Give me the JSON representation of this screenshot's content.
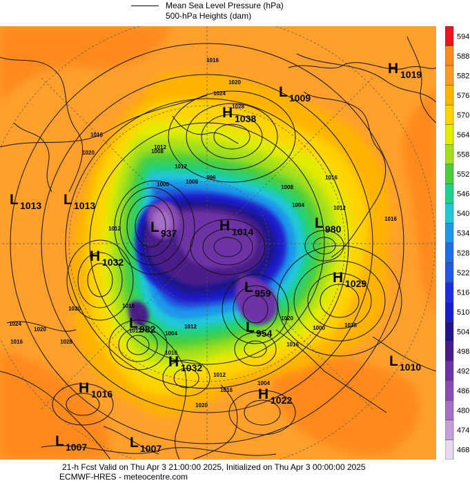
{
  "legend": {
    "mslp_label": "Mean Sea Level Pressure (hPa)",
    "heights_label": "500-hPa Heights (dam)"
  },
  "colorbar": {
    "ticks": [
      "594",
      "588",
      "582",
      "576",
      "570",
      "564",
      "558",
      "552",
      "546",
      "540",
      "534",
      "528",
      "522",
      "516",
      "510",
      "504",
      "498",
      "492",
      "486",
      "480",
      "474",
      "468"
    ],
    "colors": [
      "#e8141e",
      "#ff8a1e",
      "#ff9a2a",
      "#ffb400",
      "#ffd400",
      "#e2ec00",
      "#a4e01e",
      "#4ccd3a",
      "#1ed28c",
      "#21c6d8",
      "#1e96ea",
      "#1f6de8",
      "#2258df",
      "#1e2edc",
      "#1a1ec8",
      "#1e148c",
      "#4a1c8a",
      "#6e32a6",
      "#8a4cb4",
      "#a470c4",
      "#c4a0d8",
      "#e6daf0"
    ]
  },
  "systems": [
    {
      "kind": "H",
      "value": "1019"
    },
    {
      "kind": "L",
      "value": "1009"
    },
    {
      "kind": "H",
      "value": "1038"
    },
    {
      "kind": "L",
      "value": "1013"
    },
    {
      "kind": "L",
      "value": "1013"
    },
    {
      "kind": "H",
      "value": "1032"
    },
    {
      "kind": "L",
      "value": "937"
    },
    {
      "kind": "H",
      "value": "1014"
    },
    {
      "kind": "L",
      "value": "980"
    },
    {
      "kind": "H",
      "value": "1029"
    },
    {
      "kind": "L",
      "value": "959"
    },
    {
      "kind": "L",
      "value": "982"
    },
    {
      "kind": "L",
      "value": "954"
    },
    {
      "kind": "H",
      "value": "1032"
    },
    {
      "kind": "L",
      "value": "1010"
    },
    {
      "kind": "H",
      "value": "1016"
    },
    {
      "kind": "H",
      "value": "1022"
    },
    {
      "kind": "L",
      "value": "1007"
    },
    {
      "kind": "L",
      "value": "1007"
    }
  ],
  "contour_labels": [
    "1016",
    "1020",
    "1024",
    "1028",
    "1016",
    "1020",
    "1008",
    "1012",
    "1000",
    "996",
    "1008",
    "1016",
    "1012",
    "1004",
    "1012",
    "1020",
    "1024",
    "1016",
    "1020",
    "1028",
    "1016",
    "1012",
    "1004",
    "1012",
    "1020",
    "1016",
    "1004",
    "1012",
    "1016",
    "1000",
    "1028",
    "1016",
    "1012",
    "1020",
    "1008",
    "1016",
    "1028",
    "1016"
  ],
  "footer": {
    "valid_line": "21-h Fcst Valid on Thu Apr  3 21:00:00 2025, Initialized on Thu Apr  3 00:00:00 2025",
    "source_line": "ECMWF-HRES  - meteocentre.com"
  }
}
